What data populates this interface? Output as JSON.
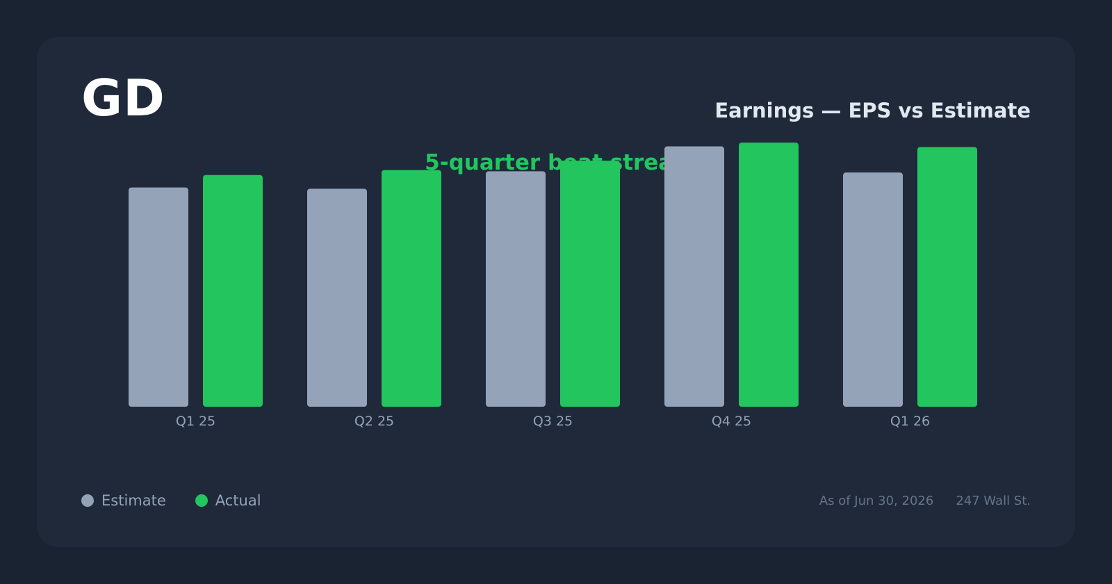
{
  "header": {
    "ticker": "GD",
    "title": "Earnings — EPS vs Estimate",
    "callout": "5-quarter beat streak"
  },
  "footer": {
    "as_of": "As of Jun 30, 2026",
    "source": "247 Wall St."
  },
  "colors": {
    "estimate": "#94a3b8",
    "actual": "#22c55e",
    "background": "#1a2332",
    "card": "#1f293a"
  },
  "chart_data": {
    "type": "bar",
    "categories": [
      "Q1 25",
      "Q2 25",
      "Q3 25",
      "Q4 25",
      "Q1 26"
    ],
    "series": [
      {
        "name": "Estimate",
        "values": [
          3.52,
          3.5,
          3.78,
          4.18,
          3.76
        ]
      },
      {
        "name": "Actual",
        "values": [
          3.72,
          3.8,
          3.95,
          4.24,
          4.17
        ]
      }
    ],
    "title": "Earnings — EPS vs Estimate",
    "xlabel": "",
    "ylabel": "",
    "ylim": [
      0,
      4.8
    ],
    "grid": false,
    "legend": "bottom-left"
  }
}
